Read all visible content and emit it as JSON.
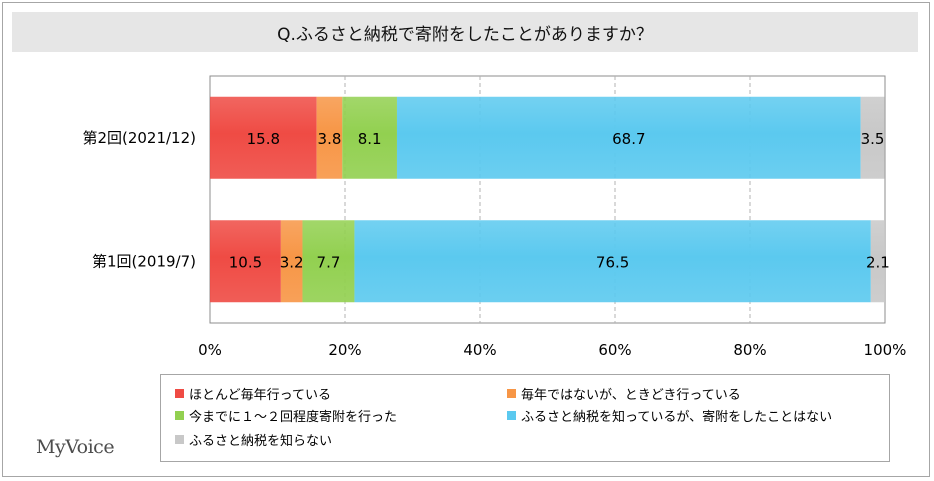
{
  "logo": "MyVoice",
  "chart_data": {
    "type": "bar",
    "orientation": "horizontal",
    "stacked": true,
    "title": "Q.ふるさと納税で寄附をしたことがありますか？",
    "categories": [
      "第2回(2021/12)",
      "第1回(2019/7)"
    ],
    "series": [
      {
        "name": "ほとんど毎年行っている",
        "color": "#ef4b44",
        "values": [
          15.8,
          10.5
        ]
      },
      {
        "name": "毎年ではないが、ときどき行っている",
        "color": "#f79646",
        "values": [
          3.8,
          3.2
        ]
      },
      {
        "name": "今までに１～２回程度寄附を行った",
        "color": "#92d050",
        "values": [
          8.1,
          7.7
        ]
      },
      {
        "name": "ふるさと納税を知っているが、寄附をしたことはない",
        "color": "#5bc9ef",
        "values": [
          68.7,
          76.5
        ]
      },
      {
        "name": "ふるさと納税を知らない",
        "color": "#c8c8c8",
        "values": [
          3.5,
          2.1
        ]
      }
    ],
    "data_labels": [
      [
        "15.8",
        "3.8",
        "8.1",
        "68.7",
        "3.5"
      ],
      [
        "10.5",
        "3.2",
        "7.7",
        "76.5",
        "2.1"
      ]
    ],
    "xlim": [
      0,
      100
    ],
    "xticks": [
      "0%",
      "20%",
      "40%",
      "60%",
      "80%",
      "100%"
    ],
    "grid": true,
    "legend_position": "bottom"
  }
}
